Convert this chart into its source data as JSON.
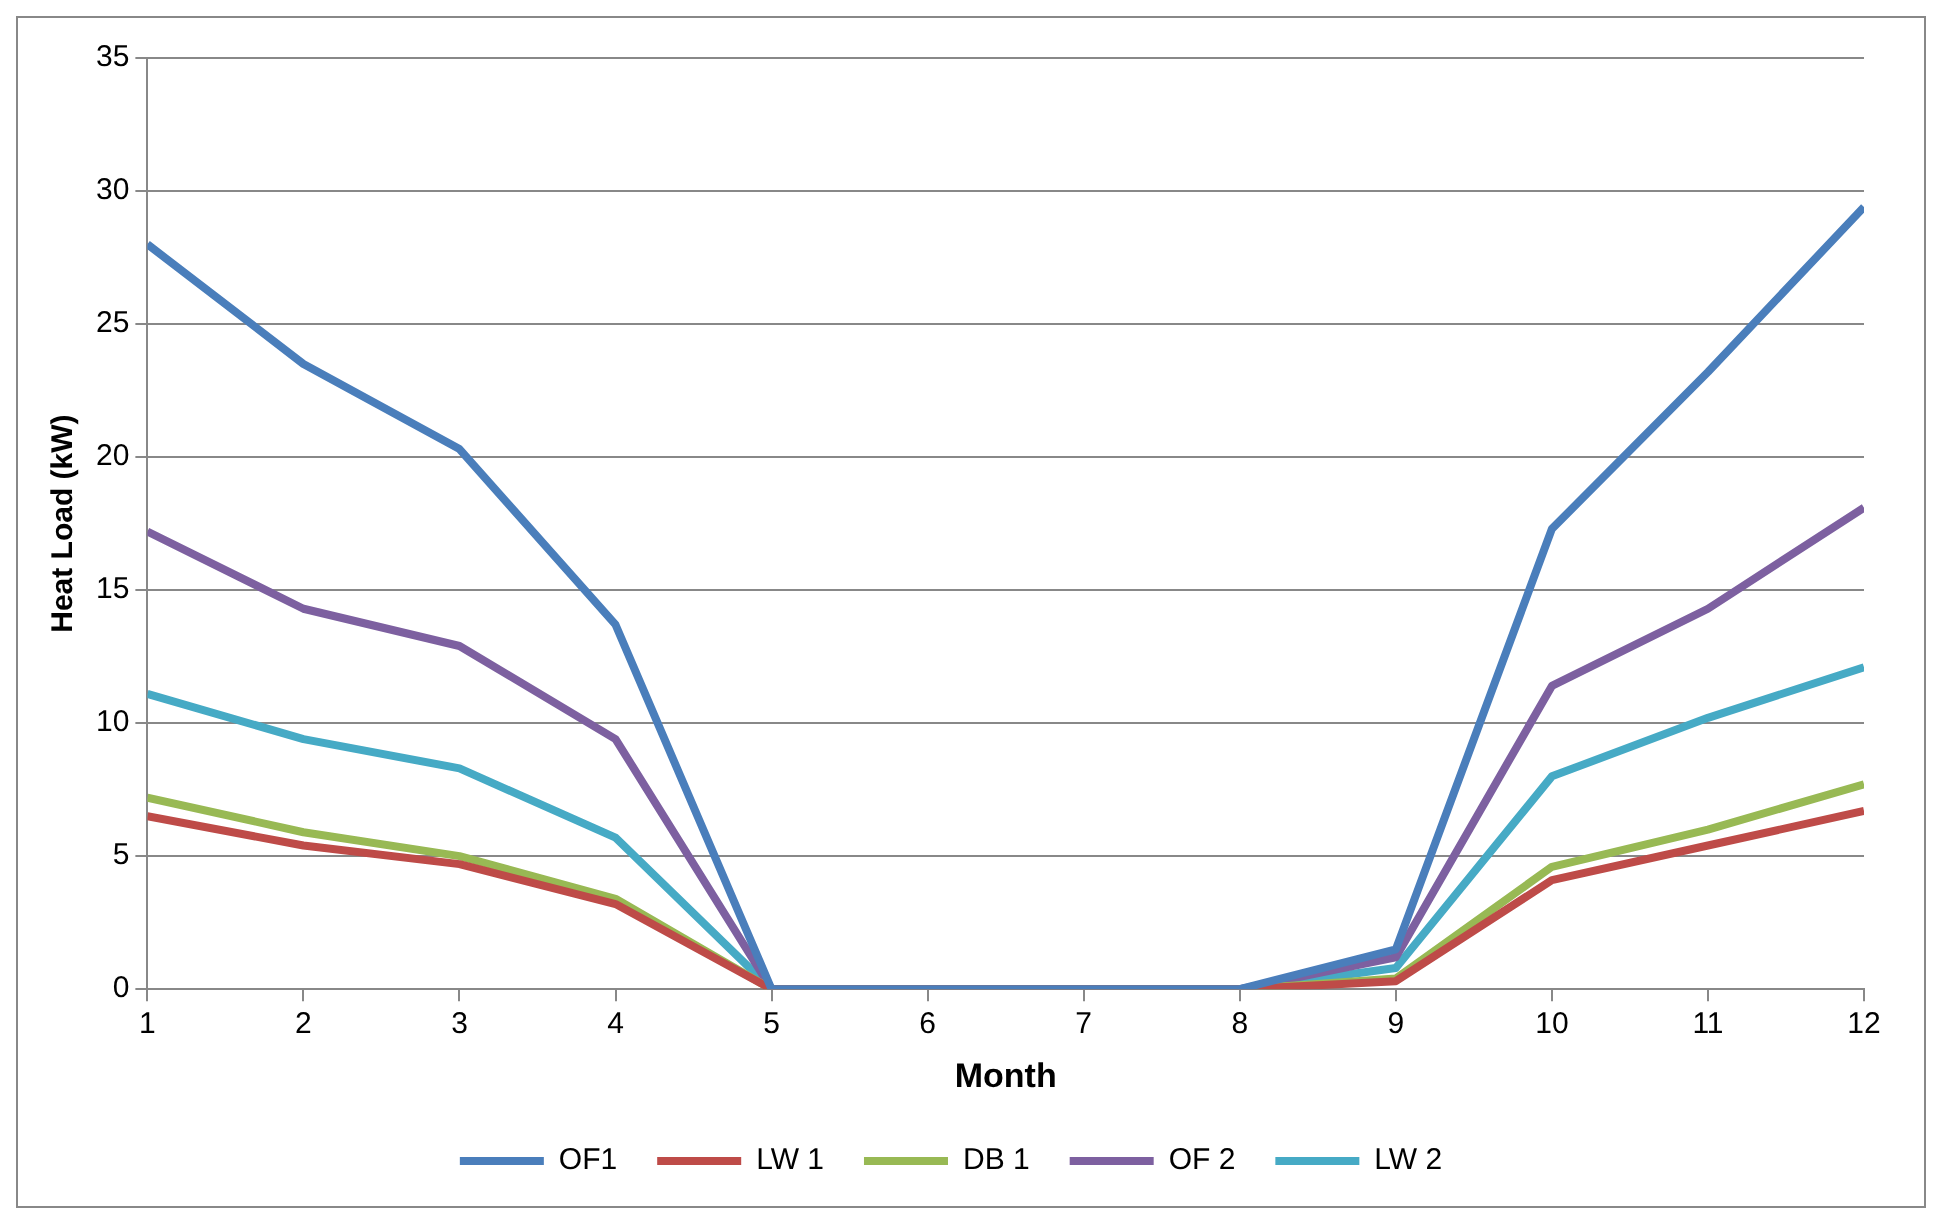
{
  "chart_data": {
    "type": "line",
    "xlabel": "Month",
    "ylabel": "Heat Load (kW)",
    "x": [
      1,
      2,
      3,
      4,
      5,
      6,
      7,
      8,
      9,
      10,
      11,
      12
    ],
    "xlim": [
      1,
      12
    ],
    "xticks": [
      1,
      2,
      3,
      4,
      5,
      6,
      7,
      8,
      9,
      10,
      11,
      12
    ],
    "ylim": [
      0,
      35
    ],
    "yticks": [
      0,
      5,
      10,
      15,
      20,
      25,
      30,
      35
    ],
    "grid": "y",
    "legend": "bottom",
    "marker": "none",
    "line_style": "solid",
    "series": [
      {
        "name": "OF1",
        "color": "#4a7ebb",
        "values": [
          28,
          23.5,
          20.3,
          13.7,
          0,
          0,
          0,
          0,
          1.5,
          17.3,
          23.2,
          29.4
        ]
      },
      {
        "name": "LW 1",
        "color": "#be4b48",
        "values": [
          6.5,
          5.4,
          4.7,
          3.2,
          0,
          0,
          0,
          0,
          0.3,
          4.1,
          5.4,
          6.7
        ]
      },
      {
        "name": "DB 1",
        "color": "#98b954",
        "values": [
          7.2,
          5.9,
          5,
          3.4,
          0,
          0,
          0,
          0,
          0.4,
          4.6,
          6,
          7.7
        ]
      },
      {
        "name": "OF 2",
        "color": "#7d60a0",
        "values": [
          17.2,
          14.3,
          12.9,
          9.4,
          0,
          0,
          0,
          0,
          1.2,
          11.4,
          14.3,
          18.1
        ]
      },
      {
        "name": "LW 2",
        "color": "#46aac5",
        "values": [
          11.1,
          9.4,
          8.3,
          5.7,
          0,
          0,
          0,
          0,
          0.8,
          8,
          10.2,
          12.1
        ]
      }
    ]
  }
}
